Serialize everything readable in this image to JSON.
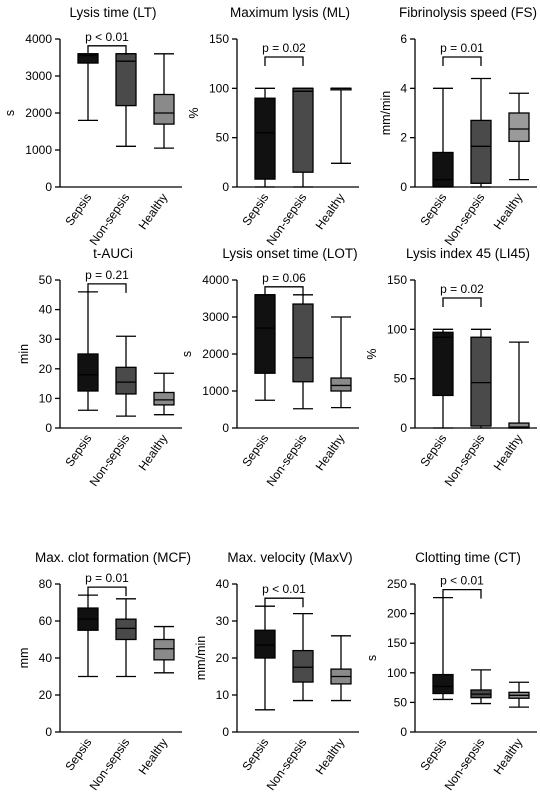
{
  "chart_data": [
    {
      "type": "box",
      "title": "Lysis time (LT)",
      "ylabel": "s",
      "ylim": [
        0,
        4000
      ],
      "yticks": [
        0,
        1000,
        2000,
        3000,
        4000
      ],
      "categories": [
        "Sepsis",
        "Non-sepsis",
        "Healthy"
      ],
      "colors": [
        "#111111",
        "#4a4a4a",
        "#8a8a8a"
      ],
      "boxes": [
        {
          "min": 1800,
          "q1": 3350,
          "median": 3550,
          "q3": 3600,
          "max": 3600
        },
        {
          "min": 1100,
          "q1": 2200,
          "median": 3400,
          "q3": 3600,
          "max": 3600
        },
        {
          "min": 1050,
          "q1": 1700,
          "median": 2000,
          "q3": 2500,
          "max": 3600
        }
      ],
      "comparison": {
        "from": 0,
        "to": 1,
        "label": "p < 0.01"
      }
    },
    {
      "type": "box",
      "title": "Maximum lysis (ML)",
      "ylabel": "%",
      "ylim": [
        0,
        150
      ],
      "yticks": [
        0,
        50,
        100,
        150
      ],
      "categories": [
        "Sepsis",
        "Non-sepsis",
        "Healthy"
      ],
      "colors": [
        "#111111",
        "#4a4a4a",
        "#8a8a8a"
      ],
      "boxes": [
        {
          "min": 0,
          "q1": 8,
          "median": 55,
          "q3": 90,
          "max": 100
        },
        {
          "min": 0,
          "q1": 15,
          "median": 97,
          "q3": 100,
          "max": 100
        },
        {
          "min": 24,
          "q1": 99,
          "median": 100,
          "q3": 100,
          "max": 100
        }
      ],
      "comparison": {
        "from": 0,
        "to": 1,
        "label": "p = 0.02"
      }
    },
    {
      "type": "box",
      "title": "Fibrinolysis speed (FS)",
      "ylabel": "mm/min",
      "ylim": [
        0,
        6
      ],
      "yticks": [
        0,
        2,
        4,
        6
      ],
      "categories": [
        "Sepsis",
        "Non-sepsis",
        "Healthy"
      ],
      "colors": [
        "#111111",
        "#4a4a4a",
        "#9a9a9a"
      ],
      "boxes": [
        {
          "min": 0,
          "q1": 0.02,
          "median": 0.3,
          "q3": 1.4,
          "max": 4.0
        },
        {
          "min": 0,
          "q1": 0.15,
          "median": 1.65,
          "q3": 2.7,
          "max": 4.4
        },
        {
          "min": 0.3,
          "q1": 1.85,
          "median": 2.35,
          "q3": 3.0,
          "max": 3.8
        }
      ],
      "comparison": {
        "from": 0,
        "to": 1,
        "label": "p = 0.01"
      }
    },
    {
      "type": "box",
      "title": "t-AUCi",
      "ylabel": "min",
      "ylim": [
        0,
        50
      ],
      "yticks": [
        0,
        10,
        20,
        30,
        40,
        50
      ],
      "categories": [
        "Sepsis",
        "Non-sepsis",
        "Healthy"
      ],
      "colors": [
        "#111111",
        "#4a4a4a",
        "#8a8a8a"
      ],
      "boxes": [
        {
          "min": 6,
          "q1": 12.5,
          "median": 18,
          "q3": 25,
          "max": 46
        },
        {
          "min": 4,
          "q1": 11.5,
          "median": 15.5,
          "q3": 20.5,
          "max": 31
        },
        {
          "min": 4.5,
          "q1": 7.8,
          "median": 9.5,
          "q3": 12,
          "max": 18.5
        }
      ],
      "comparison": {
        "from": 0,
        "to": 1,
        "label": "p = 0.21"
      }
    },
    {
      "type": "box",
      "title": "Lysis onset time (LOT)",
      "ylabel": "s",
      "ylim": [
        0,
        4000
      ],
      "yticks": [
        0,
        1000,
        2000,
        3000,
        4000
      ],
      "categories": [
        "Sepsis",
        "Non-sepsis",
        "Healthy"
      ],
      "colors": [
        "#111111",
        "#4a4a4a",
        "#8a8a8a"
      ],
      "boxes": [
        {
          "min": 750,
          "q1": 1480,
          "median": 2700,
          "q3": 3600,
          "max": 3600
        },
        {
          "min": 520,
          "q1": 1250,
          "median": 1900,
          "q3": 3350,
          "max": 3600
        },
        {
          "min": 550,
          "q1": 1000,
          "median": 1150,
          "q3": 1350,
          "max": 3000
        }
      ],
      "comparison": {
        "from": 0,
        "to": 1,
        "label": "p = 0.06"
      }
    },
    {
      "type": "box",
      "title": "Lysis index 45 (LI45)",
      "ylabel": "%",
      "ylim": [
        0,
        150
      ],
      "yticks": [
        0,
        50,
        100,
        150
      ],
      "categories": [
        "Sepsis",
        "Non-sepsis",
        "Healthy"
      ],
      "colors": [
        "#111111",
        "#4a4a4a",
        "#8a8a8a"
      ],
      "boxes": [
        {
          "min": 0,
          "q1": 33,
          "median": 92,
          "q3": 97,
          "max": 100
        },
        {
          "min": 0,
          "q1": 2,
          "median": 46,
          "q3": 92,
          "max": 100
        },
        {
          "min": 0,
          "q1": 0,
          "median": 1,
          "q3": 5,
          "max": 87
        }
      ],
      "comparison": {
        "from": 0,
        "to": 1,
        "label": "p = 0.02"
      }
    },
    {
      "type": "box",
      "title": "Max. clot formation (MCF)",
      "ylabel": "mm",
      "ylim": [
        0,
        80
      ],
      "yticks": [
        0,
        20,
        40,
        60,
        80
      ],
      "categories": [
        "Sepsis",
        "Non-sepsis",
        "Healthy"
      ],
      "colors": [
        "#111111",
        "#4a4a4a",
        "#8a8a8a"
      ],
      "boxes": [
        {
          "min": 30,
          "q1": 55,
          "median": 61,
          "q3": 67,
          "max": 74
        },
        {
          "min": 30,
          "q1": 50,
          "median": 56,
          "q3": 61,
          "max": 72
        },
        {
          "min": 32,
          "q1": 39,
          "median": 45,
          "q3": 50,
          "max": 57
        }
      ],
      "comparison": {
        "from": 0,
        "to": 1,
        "label": "p = 0.01"
      }
    },
    {
      "type": "box",
      "title": "Max. velocity (MaxV)",
      "ylabel": "mm/min",
      "ylim": [
        0,
        40
      ],
      "yticks": [
        0,
        10,
        20,
        30,
        40
      ],
      "categories": [
        "Sepsis",
        "Non-sepsis",
        "Healthy"
      ],
      "colors": [
        "#111111",
        "#4a4a4a",
        "#8a8a8a"
      ],
      "boxes": [
        {
          "min": 6,
          "q1": 20,
          "median": 23.5,
          "q3": 27.5,
          "max": 34
        },
        {
          "min": 8.5,
          "q1": 13.5,
          "median": 17.5,
          "q3": 22,
          "max": 32
        },
        {
          "min": 8.5,
          "q1": 13,
          "median": 15,
          "q3": 17,
          "max": 26
        }
      ],
      "comparison": {
        "from": 0,
        "to": 1,
        "label": "p < 0.01"
      }
    },
    {
      "type": "box",
      "title": "Clotting time (CT)",
      "ylabel": "s",
      "ylim": [
        0,
        250
      ],
      "yticks": [
        0,
        50,
        100,
        150,
        200,
        250
      ],
      "categories": [
        "Sepsis",
        "Non-sepsis",
        "Healthy"
      ],
      "colors": [
        "#111111",
        "#4a4a4a",
        "#8a8a8a"
      ],
      "boxes": [
        {
          "min": 55,
          "q1": 65,
          "median": 77,
          "q3": 97,
          "max": 227
        },
        {
          "min": 48,
          "q1": 58,
          "median": 64,
          "q3": 71,
          "max": 105
        },
        {
          "min": 42,
          "q1": 57,
          "median": 62,
          "q3": 67,
          "max": 84
        }
      ],
      "comparison": {
        "from": 0,
        "to": 1,
        "label": "p < 0.01"
      }
    }
  ]
}
